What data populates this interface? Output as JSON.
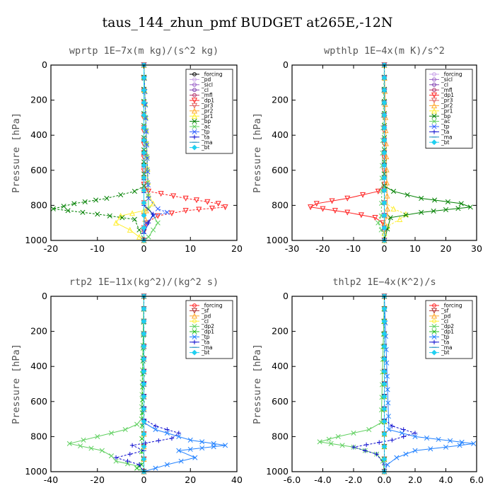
{
  "figure": {
    "title": "taus_144_zhun_pmf  BUDGET at265E,-12N"
  },
  "chart_data": [
    {
      "type": "line",
      "title": "wprtp   1E−7x(m kg)/(s^2 kg)",
      "ylabel": "Pressure [hPa]",
      "xlim": [
        -20,
        20
      ],
      "ylim": [
        1000,
        0
      ],
      "xticks": [
        "-20",
        "-10",
        "0",
        "10",
        "20"
      ],
      "xtick_values": [
        -20,
        -10,
        0,
        10,
        20
      ],
      "yticks": [
        "0",
        "200",
        "400",
        "600",
        "800",
        "1000"
      ],
      "ytick_values": [
        0,
        200,
        400,
        600,
        800,
        1000
      ],
      "legend_position": "top-right",
      "series": [
        {
          "name": "_forcing",
          "color": "#000000",
          "marker": "o",
          "y": [
            0,
            500,
            1000
          ],
          "x": [
            0,
            0,
            0
          ]
        },
        {
          "name": "_pd",
          "color": "#c8a0e8",
          "marker": "o",
          "y": [
            0,
            1000
          ],
          "x": [
            0,
            0
          ]
        },
        {
          "name": "_sicl",
          "color": "#9a60c8",
          "marker": "o",
          "y": [
            0,
            1000
          ],
          "x": [
            0,
            0
          ]
        },
        {
          "name": "_cl",
          "color": "#8040b0",
          "marker": "o",
          "y": [
            0,
            1000
          ],
          "x": [
            0,
            0
          ]
        },
        {
          "name": "_mfl",
          "color": "#b0306a",
          "marker": "o",
          "y": [
            0,
            1000
          ],
          "x": [
            0,
            0
          ]
        },
        {
          "name": "_dp1",
          "color": "#ff2020",
          "marker": "v",
          "y": [
            0,
            680,
            720,
            760,
            790,
            810,
            830,
            860,
            900,
            950,
            1000
          ],
          "x": [
            0,
            0,
            1,
            9,
            16,
            17.5,
            9,
            3,
            0.5,
            0,
            0
          ]
        },
        {
          "name": "_pr3",
          "color": "#e06060",
          "marker": "v",
          "y": [
            0,
            1000
          ],
          "x": [
            0,
            0
          ]
        },
        {
          "name": "_pr2",
          "color": "#ffaa30",
          "marker": "^",
          "y": [
            0,
            780,
            830,
            880,
            930,
            1000
          ],
          "x": [
            0,
            0,
            0.5,
            0.3,
            0,
            0
          ]
        },
        {
          "name": "_pr1",
          "color": "#ffee30",
          "marker": "^",
          "y": [
            0,
            740,
            790,
            830,
            860,
            900,
            940,
            980,
            1000
          ],
          "x": [
            0,
            1,
            2,
            0,
            -5,
            -6,
            -3,
            -1,
            0
          ]
        },
        {
          "name": "_bp",
          "color": "#008000",
          "marker": "x",
          "y": [
            0,
            690,
            720,
            760,
            790,
            820,
            850,
            880,
            1000
          ],
          "x": [
            0,
            0,
            -2,
            -8,
            -15,
            -19.5,
            -10,
            -2,
            0
          ]
        },
        {
          "name": "_ac",
          "color": "#60d060",
          "marker": "x",
          "y": [
            0,
            820,
            860,
            900,
            940,
            980,
            1000
          ],
          "x": [
            0,
            1,
            2,
            3,
            2,
            1,
            0
          ]
        },
        {
          "name": "_tp",
          "color": "#3060ff",
          "marker": "x",
          "y": [
            0,
            760,
            820,
            840,
            860,
            900,
            950,
            1000
          ],
          "x": [
            0,
            1,
            3,
            5,
            2,
            0.5,
            0,
            0
          ]
        },
        {
          "name": "_ta",
          "color": "#1010d0",
          "marker": "+",
          "y": [
            0,
            800,
            850,
            900,
            960,
            1000
          ],
          "x": [
            0,
            0,
            2,
            1,
            0,
            0
          ]
        },
        {
          "name": "_ma",
          "color": "#2090c0",
          "marker": "-",
          "y": [
            0,
            1000
          ],
          "x": [
            0,
            0
          ]
        },
        {
          "name": "_bt",
          "color": "#20d0f0",
          "marker": "d",
          "y": [
            0,
            1000
          ],
          "x": [
            0,
            0
          ]
        }
      ]
    },
    {
      "type": "line",
      "title": "wpthlp   1E−4x(m K)/s^2",
      "ylabel": "Pressure [hPa]",
      "xlim": [
        -30,
        30
      ],
      "ylim": [
        1000,
        0
      ],
      "xticks": [
        "-30",
        "-20",
        "-10",
        "0",
        "10",
        "20",
        "30"
      ],
      "xtick_values": [
        -30,
        -20,
        -10,
        0,
        10,
        20,
        30
      ],
      "yticks": [
        "0",
        "200",
        "400",
        "600",
        "800",
        "1000"
      ],
      "ytick_values": [
        0,
        200,
        400,
        600,
        800,
        1000
      ],
      "legend_position": "top-right",
      "series": [
        {
          "name": "_forcing",
          "color": "#c8a0e8",
          "marker": "o",
          "y": [
            0,
            1000
          ],
          "x": [
            0,
            0
          ]
        },
        {
          "name": "_sicl",
          "color": "#9a60c8",
          "marker": "o",
          "y": [
            0,
            1000
          ],
          "x": [
            0,
            0
          ]
        },
        {
          "name": "_cl",
          "color": "#8040b0",
          "marker": "o",
          "y": [
            0,
            1000
          ],
          "x": [
            0,
            0
          ]
        },
        {
          "name": "_mfl",
          "color": "#b0306a",
          "marker": "o",
          "y": [
            0,
            1000
          ],
          "x": [
            0,
            0
          ]
        },
        {
          "name": "_dp1",
          "color": "#ff2020",
          "marker": "v",
          "y": [
            0,
            680,
            720,
            760,
            790,
            810,
            840,
            870,
            900,
            950,
            1000
          ],
          "x": [
            0,
            0,
            -2,
            -12,
            -22,
            -24,
            -12,
            -3,
            -0.5,
            0,
            0
          ]
        },
        {
          "name": "_pr3",
          "color": "#e06060",
          "marker": "v",
          "y": [
            0,
            1000
          ],
          "x": [
            0,
            0
          ]
        },
        {
          "name": "_pr2",
          "color": "#ffaa30",
          "marker": "^",
          "y": [
            0,
            820,
            860,
            900,
            1000
          ],
          "x": [
            0,
            1,
            1,
            0,
            0
          ]
        },
        {
          "name": "_pr1",
          "color": "#ffee30",
          "marker": "^",
          "y": [
            0,
            780,
            820,
            850,
            880,
            920,
            960,
            1000
          ],
          "x": [
            0,
            0,
            3,
            7,
            5,
            1,
            0,
            0
          ]
        },
        {
          "name": "_bp",
          "color": "#008000",
          "marker": "x",
          "y": [
            0,
            690,
            720,
            760,
            790,
            810,
            840,
            870,
            1000
          ],
          "x": [
            0,
            0,
            3,
            12,
            25,
            28,
            12,
            2,
            0
          ]
        },
        {
          "name": "_ac",
          "color": "#60d060",
          "marker": "x",
          "y": [
            0,
            860,
            900,
            940,
            1000
          ],
          "x": [
            0,
            -1,
            -2,
            -1,
            0
          ]
        },
        {
          "name": "_tp",
          "color": "#3060ff",
          "marker": "x",
          "y": [
            0,
            1000
          ],
          "x": [
            0,
            0
          ]
        },
        {
          "name": "_ta",
          "color": "#1010d0",
          "marker": "+",
          "y": [
            0,
            1000
          ],
          "x": [
            0,
            0
          ]
        },
        {
          "name": "_ma",
          "color": "#2090c0",
          "marker": "-",
          "y": [
            0,
            1000
          ],
          "x": [
            0,
            0
          ]
        },
        {
          "name": "_bt",
          "color": "#20d0f0",
          "marker": "d",
          "y": [
            0,
            1000
          ],
          "x": [
            0,
            0
          ]
        }
      ]
    },
    {
      "type": "line",
      "title": "rtp2   1E−11x(kg^2)/(kg^2 s)",
      "ylabel": "Pressure [hPa]",
      "xlim": [
        -40,
        40
      ],
      "ylim": [
        1000,
        0
      ],
      "xticks": [
        "-40",
        "-20",
        "0",
        "20",
        "40"
      ],
      "xtick_values": [
        -40,
        -20,
        0,
        20,
        40
      ],
      "yticks": [
        "0",
        "200",
        "400",
        "600",
        "800",
        "1000"
      ],
      "ytick_values": [
        0,
        200,
        400,
        600,
        800,
        1000
      ],
      "legend_position": "top-right",
      "series": [
        {
          "name": "_forcing",
          "color": "#ff2020",
          "marker": "o",
          "y": [
            0,
            500,
            1000
          ],
          "x": [
            0,
            0,
            0
          ]
        },
        {
          "name": "_sf",
          "color": "#b03030",
          "marker": "v",
          "y": [
            0,
            1000
          ],
          "x": [
            0,
            0
          ]
        },
        {
          "name": "_pd",
          "color": "#ffaa30",
          "marker": "^",
          "y": [
            0,
            1000
          ],
          "x": [
            0,
            0
          ]
        },
        {
          "name": "_cl",
          "color": "#ffee30",
          "marker": "o",
          "y": [
            0,
            1000
          ],
          "x": [
            0,
            0
          ]
        },
        {
          "name": "_dp2",
          "color": "#60d060",
          "marker": "x",
          "y": [
            0,
            700,
            730,
            760,
            800,
            840,
            880,
            910,
            940,
            970,
            1000
          ],
          "x": [
            0,
            -1,
            -3,
            -8,
            -20,
            -32,
            -18,
            -14,
            -12,
            -2,
            0
          ]
        },
        {
          "name": "_dp1",
          "color": "#20c020",
          "marker": "x",
          "y": [
            0,
            960,
            980,
            1000
          ],
          "x": [
            0,
            -1,
            -3,
            0
          ]
        },
        {
          "name": "_tp",
          "color": "#2080ff",
          "marker": "x",
          "y": [
            0,
            720,
            760,
            800,
            820,
            850,
            880,
            920,
            960,
            1000
          ],
          "x": [
            0,
            0,
            5,
            15,
            20,
            35,
            15,
            22,
            10,
            0
          ]
        },
        {
          "name": "_ta",
          "color": "#1010d0",
          "marker": "+",
          "y": [
            0,
            700,
            740,
            780,
            810,
            850,
            880,
            920,
            960,
            1000
          ],
          "x": [
            0,
            0,
            5,
            15,
            12,
            -5,
            0,
            -12,
            -2,
            0
          ]
        },
        {
          "name": "_ma",
          "color": "#2090c0",
          "marker": "-",
          "y": [
            0,
            1000
          ],
          "x": [
            0,
            0
          ]
        },
        {
          "name": "_bt",
          "color": "#20d0f0",
          "marker": "d",
          "y": [
            0,
            1000
          ],
          "x": [
            0,
            0
          ]
        }
      ]
    },
    {
      "type": "line",
      "title": "thlp2   1E−4x(K^2)/s",
      "ylabel": "Pressure [hPa]",
      "xlim": [
        -6.0,
        6.0
      ],
      "ylim": [
        1000,
        0
      ],
      "xticks": [
        "-6.0",
        "-4.0",
        "-2.0",
        "0.0",
        "2.0",
        "4.0",
        "6.0"
      ],
      "xtick_values": [
        -6,
        -4,
        -2,
        0,
        2,
        4,
        6
      ],
      "yticks": [
        "0",
        "200",
        "400",
        "600",
        "800",
        "1000"
      ],
      "ytick_values": [
        0,
        200,
        400,
        600,
        800,
        1000
      ],
      "legend_position": "top-right",
      "series": [
        {
          "name": "_forcing",
          "color": "#ff2020",
          "marker": "o",
          "y": [
            0,
            500,
            1000
          ],
          "x": [
            0,
            0,
            0
          ]
        },
        {
          "name": "_sf",
          "color": "#b03030",
          "marker": "v",
          "y": [
            0,
            1000
          ],
          "x": [
            0,
            0
          ]
        },
        {
          "name": "_pd",
          "color": "#ffaa30",
          "marker": "^",
          "y": [
            0,
            1000
          ],
          "x": [
            0,
            0
          ]
        },
        {
          "name": "_cl",
          "color": "#ffee30",
          "marker": "o",
          "y": [
            0,
            1000
          ],
          "x": [
            0,
            0
          ]
        },
        {
          "name": "_dp2",
          "color": "#60d060",
          "marker": "x",
          "y": [
            0,
            720,
            760,
            800,
            830,
            860,
            900,
            940,
            1000
          ],
          "x": [
            0,
            -0.2,
            -1,
            -3,
            -4.2,
            -2,
            -0.5,
            -0.1,
            0
          ]
        },
        {
          "name": "_dp1",
          "color": "#20c020",
          "marker": "x",
          "y": [
            0,
            1000
          ],
          "x": [
            0,
            0
          ]
        },
        {
          "name": "_tp",
          "color": "#2080ff",
          "marker": "x",
          "y": [
            0,
            760,
            800,
            840,
            860,
            880,
            920,
            960,
            1000
          ],
          "x": [
            0,
            0.3,
            2,
            5.8,
            4,
            2,
            0.8,
            0.2,
            0
          ]
        },
        {
          "name": "_ta",
          "color": "#1010d0",
          "marker": "+",
          "y": [
            0,
            700,
            740,
            780,
            820,
            860,
            900,
            960,
            1000
          ],
          "x": [
            0,
            0,
            0.5,
            2,
            0.5,
            -2,
            -0.5,
            0,
            0
          ]
        },
        {
          "name": "_ma",
          "color": "#2090c0",
          "marker": "-",
          "y": [
            0,
            1000
          ],
          "x": [
            0,
            0
          ]
        },
        {
          "name": "_bt",
          "color": "#20d0f0",
          "marker": "d",
          "y": [
            0,
            1000
          ],
          "x": [
            0,
            0
          ]
        }
      ]
    }
  ]
}
